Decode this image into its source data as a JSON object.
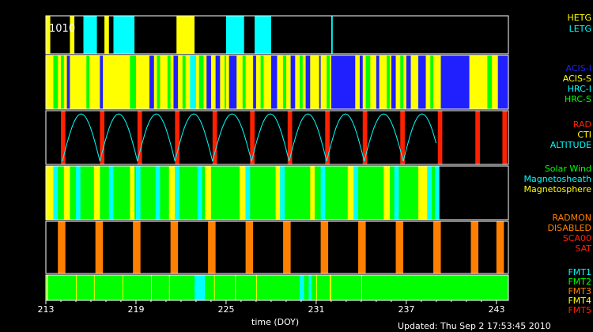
{
  "chart_data": {
    "type": "timeline",
    "xlabel": "time (DOY)",
    "xlim": [
      213,
      243.8
    ],
    "ticks": [
      "213",
      "219",
      "225",
      "231",
      "237",
      "243"
    ],
    "tick_values": [
      213,
      219,
      225,
      231,
      237,
      243
    ],
    "panel_title": "1010",
    "updated": "Updated: Thu Sep  2 17:53:45 2010",
    "colors": {
      "yellow": "#ffff00",
      "cyan": "#00ffff",
      "blue": "#2020ff",
      "green": "#00ff00",
      "red": "#ff2000",
      "orange": "#ff8000",
      "black": "#000000"
    },
    "panels": [
      {
        "name": "grating",
        "legend": [
          {
            "text": "HETG",
            "color": "#ffff00"
          },
          {
            "text": "LETG",
            "color": "#00ffff"
          }
        ],
        "default": "black",
        "segments": [
          [
            213.0,
            213.3,
            "yellow"
          ],
          [
            213.3,
            214.6,
            "black"
          ],
          [
            214.6,
            214.9,
            "yellow"
          ],
          [
            215.5,
            216.4,
            "cyan"
          ],
          [
            216.9,
            217.2,
            "yellow"
          ],
          [
            217.5,
            218.9,
            "cyan"
          ],
          [
            221.7,
            222.9,
            "yellow"
          ],
          [
            225.0,
            226.2,
            "cyan"
          ],
          [
            226.9,
            228.0,
            "cyan"
          ],
          [
            232.0,
            232.1,
            "cyan"
          ]
        ]
      },
      {
        "name": "instrument",
        "legend": [
          {
            "text": "ACIS-I",
            "color": "#2020ff"
          },
          {
            "text": "ACIS-S",
            "color": "#ffff00"
          },
          {
            "text": "HRC-I",
            "color": "#00ffff"
          },
          {
            "text": "HRC-S",
            "color": "#00ff00"
          }
        ],
        "default": "yellow",
        "segments": [
          [
            213.5,
            213.8,
            "green"
          ],
          [
            214.0,
            214.2,
            "green"
          ],
          [
            214.4,
            214.6,
            "blue"
          ],
          [
            215.7,
            215.9,
            "green"
          ],
          [
            216.6,
            216.8,
            "blue"
          ],
          [
            218.6,
            219.0,
            "green"
          ],
          [
            219.9,
            220.2,
            "blue"
          ],
          [
            220.4,
            220.6,
            "green"
          ],
          [
            221.1,
            221.3,
            "green"
          ],
          [
            221.5,
            221.8,
            "blue"
          ],
          [
            222.1,
            222.3,
            "green"
          ],
          [
            222.6,
            223.0,
            "cyan"
          ],
          [
            223.2,
            223.5,
            "green"
          ],
          [
            223.7,
            224.0,
            "blue"
          ],
          [
            224.3,
            224.6,
            "blue"
          ],
          [
            224.9,
            225.0,
            "green"
          ],
          [
            225.2,
            225.7,
            "blue"
          ],
          [
            226.1,
            226.3,
            "green"
          ],
          [
            226.8,
            227.0,
            "blue"
          ],
          [
            227.3,
            227.5,
            "green"
          ],
          [
            228.0,
            228.4,
            "blue"
          ],
          [
            228.8,
            229.0,
            "green"
          ],
          [
            229.3,
            229.6,
            "blue"
          ],
          [
            229.9,
            230.1,
            "green"
          ],
          [
            230.3,
            230.6,
            "blue"
          ],
          [
            231.2,
            231.3,
            "blue"
          ],
          [
            231.7,
            231.9,
            "green"
          ],
          [
            232.0,
            233.6,
            "blue"
          ],
          [
            233.9,
            234.1,
            "blue"
          ],
          [
            234.3,
            234.6,
            "green"
          ],
          [
            235.0,
            235.2,
            "blue"
          ],
          [
            235.7,
            235.9,
            "green"
          ],
          [
            236.0,
            236.3,
            "blue"
          ],
          [
            236.6,
            236.8,
            "green"
          ],
          [
            237.0,
            237.3,
            "blue"
          ],
          [
            237.8,
            238.3,
            "blue"
          ],
          [
            238.6,
            238.8,
            "green"
          ],
          [
            239.3,
            241.2,
            "blue"
          ],
          [
            242.4,
            242.7,
            "green"
          ],
          [
            243.1,
            243.8,
            "blue"
          ]
        ]
      },
      {
        "name": "radiation",
        "legend": [
          {
            "text": "RAD",
            "color": "#ff2000"
          },
          {
            "text": "CTI",
            "color": "#ffff00"
          },
          {
            "text": "ALTITUDE",
            "color": "#00ffff"
          }
        ],
        "default": "black",
        "segments": [
          [
            214.0,
            214.3,
            "red"
          ],
          [
            216.6,
            216.9,
            "red"
          ],
          [
            219.1,
            219.4,
            "red"
          ],
          [
            221.6,
            221.9,
            "red"
          ],
          [
            224.1,
            224.4,
            "red"
          ],
          [
            226.6,
            226.9,
            "red"
          ],
          [
            229.1,
            229.4,
            "red"
          ],
          [
            231.6,
            231.9,
            "red"
          ],
          [
            234.1,
            234.4,
            "red"
          ],
          [
            236.6,
            236.9,
            "red"
          ],
          [
            239.1,
            239.4,
            "red"
          ],
          [
            241.6,
            241.9,
            "red"
          ],
          [
            243.4,
            243.7,
            "red"
          ]
        ],
        "altitude_minima": [
          214.1,
          216.6,
          219.1,
          221.6,
          224.1,
          226.7,
          229.2,
          231.7,
          234.2,
          236.8
        ],
        "altitude_end": 239.0
      },
      {
        "name": "environment",
        "legend": [
          {
            "text": "Solar Wind",
            "color": "#00ff00"
          },
          {
            "text": "Magnetosheath",
            "color": "#00ffff"
          },
          {
            "text": "Magnetosphere",
            "color": "#ffff00"
          }
        ],
        "default": "green",
        "end": 239.2,
        "segments": [
          [
            213.0,
            213.5,
            "yellow"
          ],
          [
            213.5,
            213.8,
            "cyan"
          ],
          [
            214.2,
            214.6,
            "yellow"
          ],
          [
            215.0,
            215.3,
            "cyan"
          ],
          [
            216.2,
            216.6,
            "yellow"
          ],
          [
            217.2,
            217.5,
            "cyan"
          ],
          [
            218.6,
            218.9,
            "yellow"
          ],
          [
            219.0,
            219.3,
            "cyan"
          ],
          [
            220.3,
            220.6,
            "cyan"
          ],
          [
            221.2,
            221.6,
            "yellow"
          ],
          [
            221.6,
            221.9,
            "cyan"
          ],
          [
            223.1,
            223.4,
            "cyan"
          ],
          [
            223.6,
            224.0,
            "yellow"
          ],
          [
            225.9,
            226.3,
            "yellow"
          ],
          [
            226.3,
            226.6,
            "cyan"
          ],
          [
            228.3,
            228.6,
            "yellow"
          ],
          [
            228.6,
            228.9,
            "cyan"
          ],
          [
            230.6,
            230.9,
            "yellow"
          ],
          [
            231.3,
            231.6,
            "cyan"
          ],
          [
            233.1,
            233.5,
            "yellow"
          ],
          [
            233.5,
            233.8,
            "cyan"
          ],
          [
            235.5,
            235.9,
            "yellow"
          ],
          [
            236.2,
            236.5,
            "cyan"
          ],
          [
            237.8,
            238.4,
            "yellow"
          ],
          [
            238.4,
            238.7,
            "cyan"
          ],
          [
            238.9,
            239.2,
            "cyan"
          ]
        ]
      },
      {
        "name": "radmon",
        "legend": [
          {
            "text": "RADMON",
            "color": "#ff8000"
          },
          {
            "text": "DISABLED",
            "color": "#ff8000"
          },
          {
            "text": "SCA00",
            "color": "#ff2000"
          },
          {
            "text": "SAT",
            "color": "#ff2000"
          }
        ],
        "default": "black",
        "segments": [
          [
            213.8,
            214.3,
            "orange"
          ],
          [
            216.3,
            216.8,
            "orange"
          ],
          [
            218.8,
            219.3,
            "orange"
          ],
          [
            221.3,
            221.8,
            "orange"
          ],
          [
            223.8,
            224.3,
            "orange"
          ],
          [
            226.3,
            226.8,
            "orange"
          ],
          [
            228.8,
            229.3,
            "orange"
          ],
          [
            231.3,
            231.8,
            "orange"
          ],
          [
            233.8,
            234.3,
            "orange"
          ],
          [
            236.3,
            236.8,
            "orange"
          ],
          [
            238.8,
            239.3,
            "orange"
          ],
          [
            241.3,
            241.8,
            "orange"
          ],
          [
            243.0,
            243.5,
            "orange"
          ]
        ]
      },
      {
        "name": "format",
        "legend": [
          {
            "text": "FMT1",
            "color": "#00ffff"
          },
          {
            "text": "FMT2",
            "color": "#00ff00"
          },
          {
            "text": "FMT3",
            "color": "#ff8000"
          },
          {
            "text": "FMT4",
            "color": "#ffff00"
          },
          {
            "text": "FMT5",
            "color": "#ff2000"
          }
        ],
        "default": "green",
        "segments": [
          [
            213.05,
            213.15,
            "yellow"
          ],
          [
            215.0,
            215.05,
            "yellow"
          ],
          [
            216.2,
            216.25,
            "yellow"
          ],
          [
            218.1,
            218.15,
            "yellow"
          ],
          [
            220.0,
            220.05,
            "yellow"
          ],
          [
            221.2,
            221.25,
            "yellow"
          ],
          [
            222.9,
            223.6,
            "cyan"
          ],
          [
            224.2,
            224.25,
            "yellow"
          ],
          [
            225.6,
            225.65,
            "yellow"
          ],
          [
            227.0,
            227.05,
            "yellow"
          ],
          [
            229.9,
            230.2,
            "cyan"
          ],
          [
            230.5,
            230.7,
            "cyan"
          ],
          [
            231.0,
            231.05,
            "yellow"
          ],
          [
            231.9,
            232.0,
            "yellow"
          ],
          [
            234.0,
            234.05,
            "yellow"
          ]
        ]
      }
    ]
  }
}
